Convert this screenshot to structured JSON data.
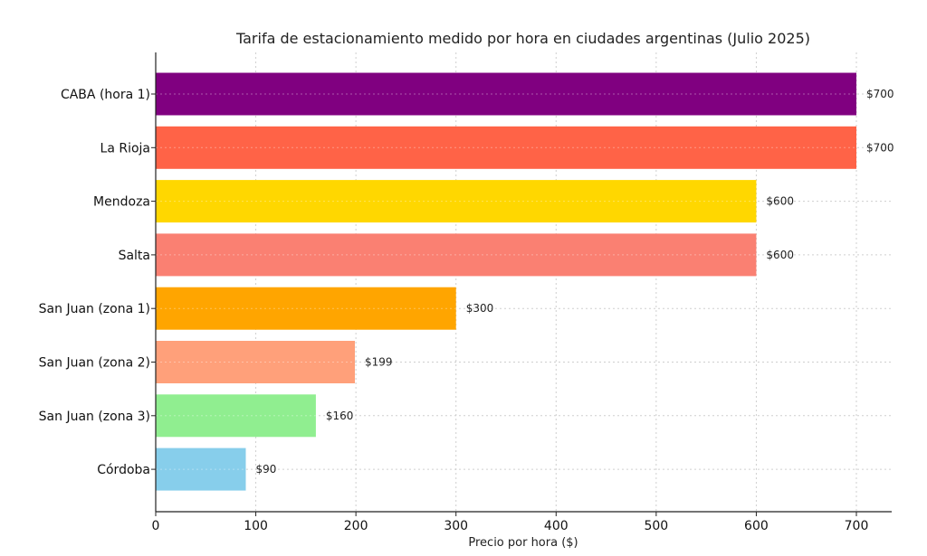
{
  "chart_data": {
    "type": "bar",
    "orientation": "horizontal",
    "title": "Tarifa de estacionamiento medido por hora en ciudades argentinas (Julio 2025)",
    "xlabel": "Precio por hora ($)",
    "ylabel": "",
    "xlim": [
      0,
      735
    ],
    "x_ticks": [
      0,
      100,
      200,
      300,
      400,
      500,
      600,
      700
    ],
    "grid": true,
    "categories": [
      "CABA (hora 1)",
      "La Rioja",
      "Mendoza",
      "Salta",
      "San Juan (zona 1)",
      "San Juan (zona 2)",
      "San Juan (zona 3)",
      "Córdoba"
    ],
    "values": [
      700,
      700,
      600,
      600,
      300,
      199,
      160,
      90
    ],
    "value_labels": [
      "$700",
      "$700",
      "$600",
      "$600",
      "$300",
      "$199",
      "$160",
      "$90"
    ],
    "colors": [
      "#800080",
      "#ff6347",
      "#ffd700",
      "#fa8072",
      "#ffa500",
      "#ffa07a",
      "#90ee90",
      "#87ceeb"
    ]
  }
}
